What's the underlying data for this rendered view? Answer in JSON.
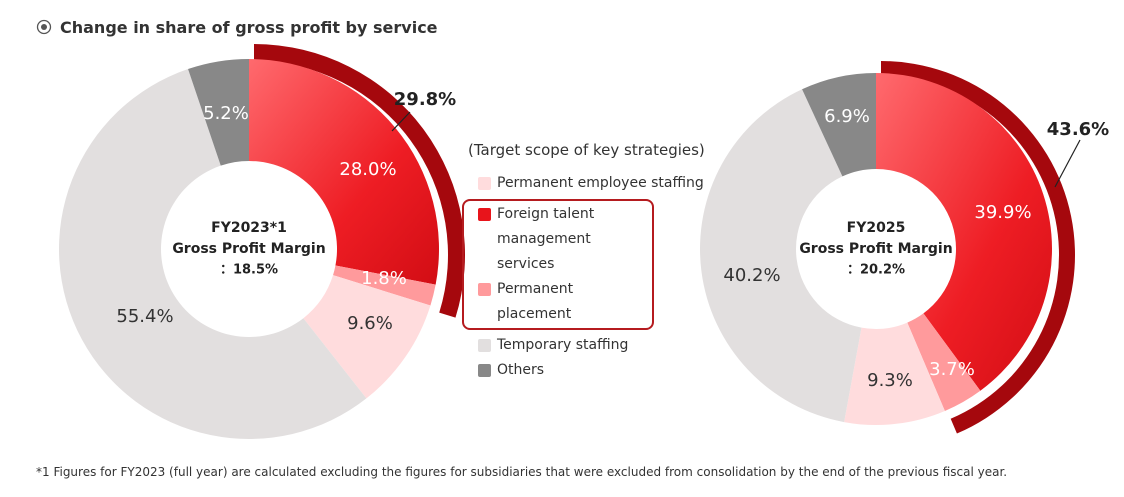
{
  "title": "Change in share of gross profit by service",
  "legend": {
    "scope_label": "(Target scope of key strategies)",
    "items": [
      {
        "label": "Permanent employee staffing",
        "color": "#ffdcdd"
      },
      {
        "label": "Foreign talent management services",
        "color": "#e8141b"
      },
      {
        "label": "Permanent placement",
        "color": "#ff9a9c"
      },
      {
        "label": "Temporary staffing",
        "color": "#e2dfdf"
      },
      {
        "label": "Others",
        "color": "#888888"
      }
    ]
  },
  "footnote": "*1   Figures for FY2023 (full year) are calculated excluding the figures for subsidiaries that were excluded from consolidation by the end of the previous fiscal year.",
  "chart_data": [
    {
      "type": "pie",
      "variant": "donut",
      "center_label": [
        "FY2023*1",
        "Gross Profit Margin",
        "：18.5%"
      ],
      "series": [
        {
          "name": "Foreign talent management services",
          "value": 28.0,
          "label": "28.0%",
          "color": "#ee1d24"
        },
        {
          "name": "Permanent placement",
          "value": 1.8,
          "label": "1.8%",
          "color": "#ff9a9c"
        },
        {
          "name": "Permanent employee staffing",
          "value": 9.6,
          "label": "9.6%",
          "color": "#ffdcdd"
        },
        {
          "name": "Temporary staffing",
          "value": 55.4,
          "label": "55.4%",
          "color": "#e2dfdf"
        },
        {
          "name": "Others",
          "value": 5.2,
          "label": "5.2%",
          "color": "#888888"
        }
      ],
      "highlight": {
        "value": 29.8,
        "label": "29.8%"
      }
    },
    {
      "type": "pie",
      "variant": "donut",
      "center_label": [
        "FY2025",
        "Gross Profit Margin",
        "：20.2%"
      ],
      "series": [
        {
          "name": "Foreign talent management services",
          "value": 39.9,
          "label": "39.9%",
          "color": "#ee1d24"
        },
        {
          "name": "Permanent placement",
          "value": 3.7,
          "label": "3.7%",
          "color": "#ff9a9c"
        },
        {
          "name": "Permanent employee staffing",
          "value": 9.3,
          "label": "9.3%",
          "color": "#ffdcdd"
        },
        {
          "name": "Temporary staffing",
          "value": 40.2,
          "label": "40.2%",
          "color": "#e2dfdf"
        },
        {
          "name": "Others",
          "value": 6.9,
          "label": "6.9%",
          "color": "#888888"
        }
      ],
      "highlight": {
        "value": 43.6,
        "label": "43.6%"
      }
    }
  ]
}
